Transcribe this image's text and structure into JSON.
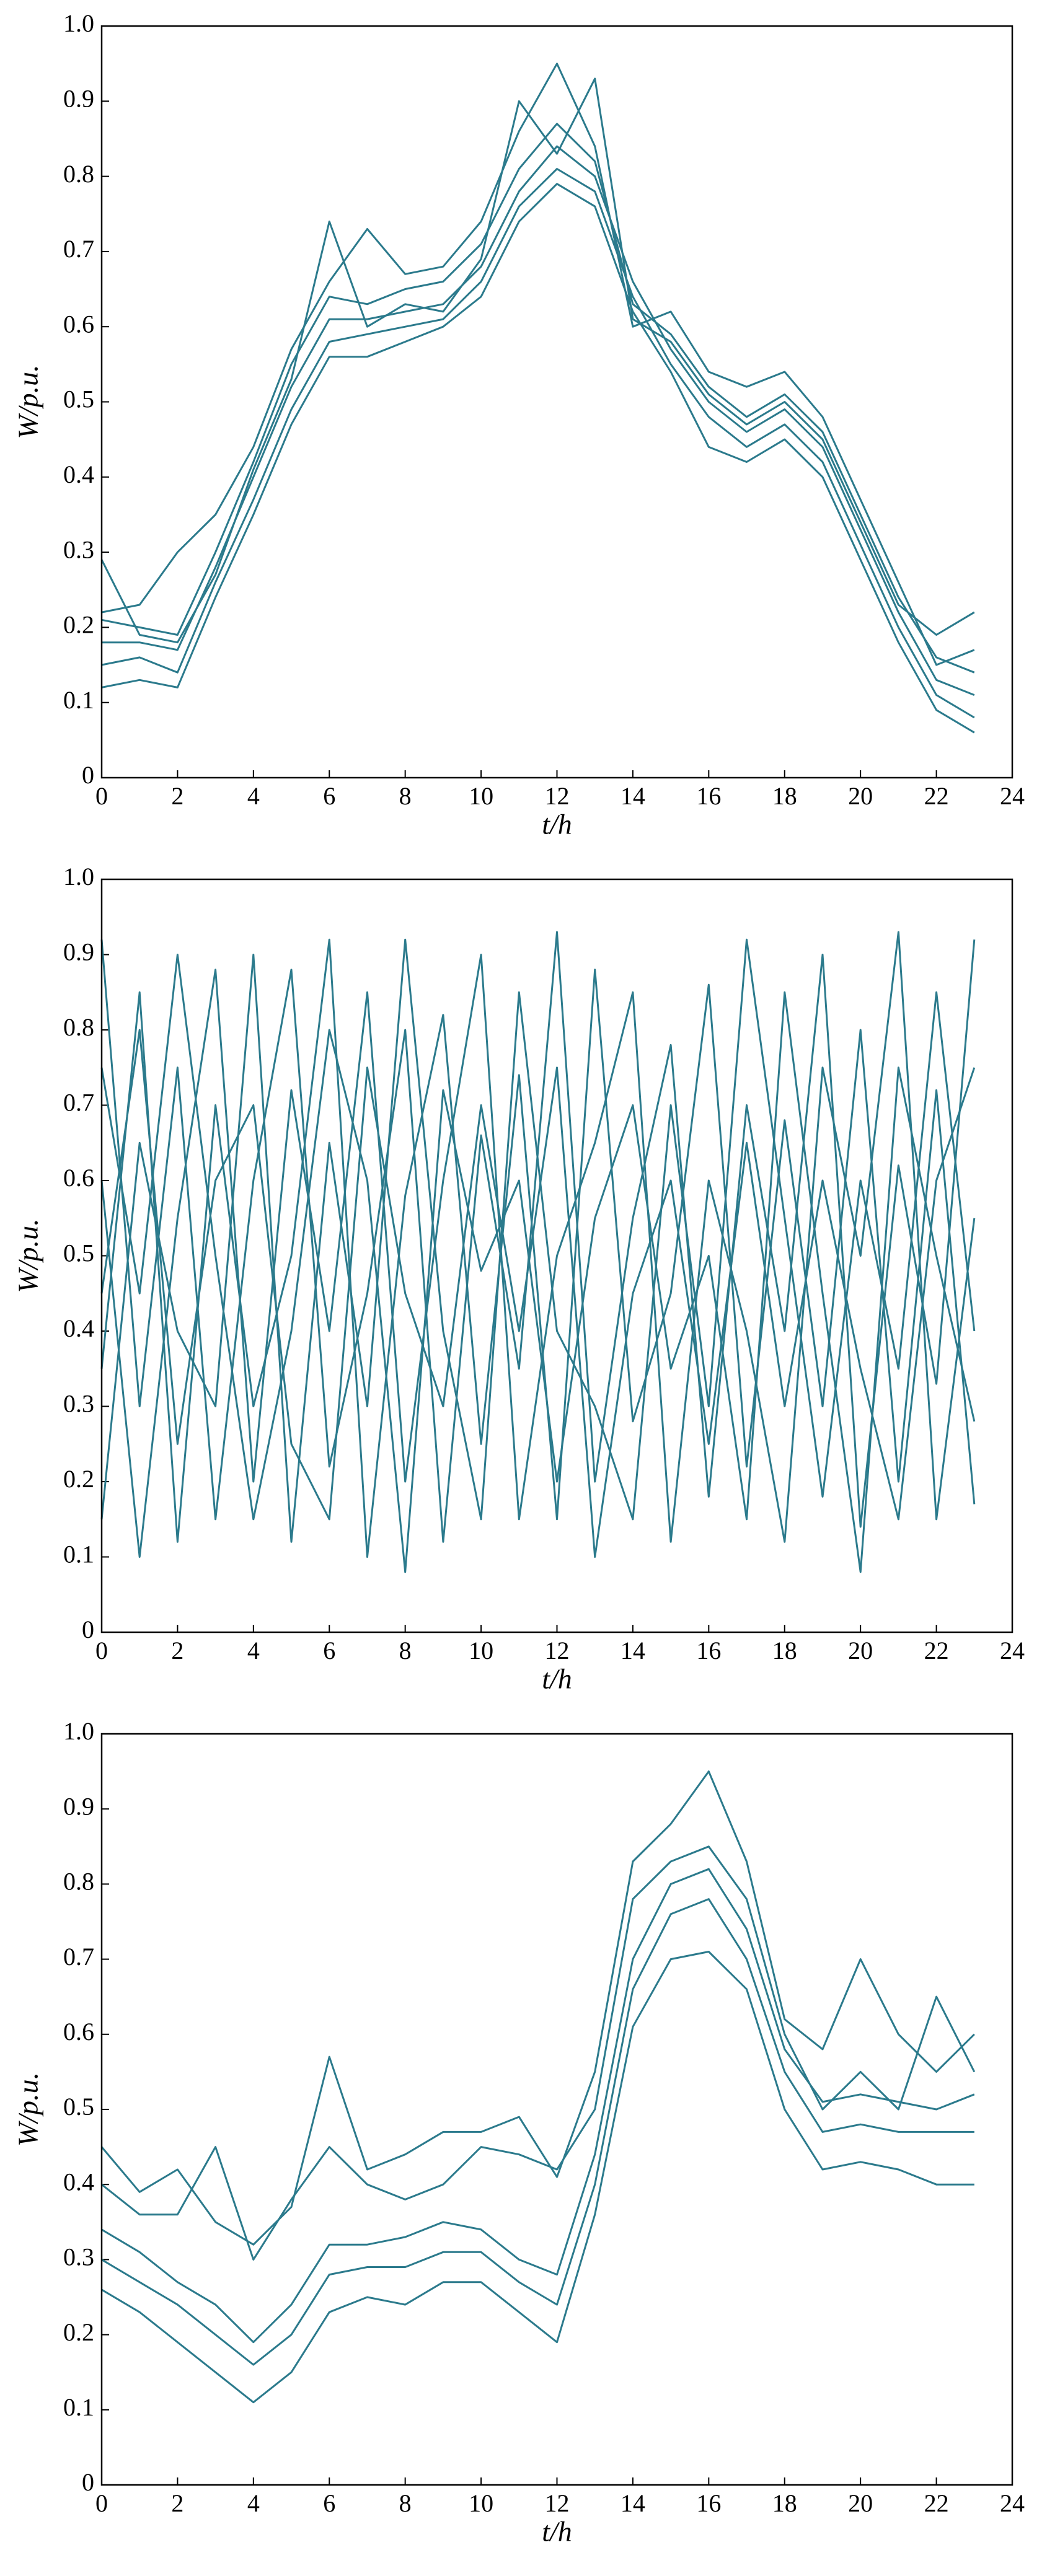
{
  "chart_data": [
    {
      "type": "line",
      "x_label": "t/h",
      "y_label": "W/p.u.",
      "x": [
        0,
        1,
        2,
        3,
        4,
        5,
        6,
        7,
        8,
        9,
        10,
        11,
        12,
        13,
        14,
        15,
        16,
        17,
        18,
        19,
        20,
        21,
        22,
        23
      ],
      "xlim": [
        0,
        24
      ],
      "xticks": [
        0,
        2,
        4,
        6,
        8,
        10,
        12,
        14,
        16,
        18,
        20,
        22,
        24
      ],
      "ylim": [
        0,
        1
      ],
      "yticks": [
        0,
        0.1,
        0.2,
        0.3,
        0.4,
        0.5,
        0.6,
        0.7,
        0.8,
        0.9,
        {
          "value": 1,
          "label": "1.0"
        }
      ],
      "series": [
        {
          "color": "#2b7a8c",
          "values": [
            0.18,
            0.18,
            0.17,
            0.28,
            0.4,
            0.52,
            0.61,
            0.61,
            0.62,
            0.63,
            0.68,
            0.78,
            0.84,
            0.8,
            0.66,
            0.57,
            0.5,
            0.46,
            0.49,
            0.44,
            0.33,
            0.22,
            0.13,
            0.11
          ]
        },
        {
          "color": "#2b7a8c",
          "values": [
            0.21,
            0.2,
            0.19,
            0.3,
            0.42,
            0.55,
            0.64,
            0.63,
            0.65,
            0.66,
            0.71,
            0.81,
            0.87,
            0.82,
            0.63,
            0.59,
            0.52,
            0.48,
            0.51,
            0.46,
            0.35,
            0.24,
            0.16,
            0.14
          ]
        },
        {
          "color": "#2b7a8c",
          "values": [
            0.15,
            0.16,
            0.14,
            0.26,
            0.37,
            0.49,
            0.58,
            0.59,
            0.6,
            0.61,
            0.66,
            0.76,
            0.81,
            0.78,
            0.64,
            0.55,
            0.48,
            0.44,
            0.47,
            0.42,
            0.31,
            0.2,
            0.11,
            0.08
          ]
        },
        {
          "color": "#2b7a8c",
          "values": [
            0.29,
            0.19,
            0.18,
            0.27,
            0.41,
            0.53,
            0.74,
            0.6,
            0.63,
            0.62,
            0.69,
            0.9,
            0.83,
            0.93,
            0.61,
            0.58,
            0.51,
            0.47,
            0.5,
            0.45,
            0.34,
            0.23,
            0.19,
            0.22
          ]
        },
        {
          "color": "#2b7a8c",
          "values": [
            0.12,
            0.13,
            0.12,
            0.24,
            0.35,
            0.47,
            0.56,
            0.56,
            0.58,
            0.6,
            0.64,
            0.74,
            0.79,
            0.76,
            0.62,
            0.54,
            0.44,
            0.42,
            0.45,
            0.4,
            0.29,
            0.18,
            0.09,
            0.06
          ]
        },
        {
          "color": "#2b7a8c",
          "values": [
            0.22,
            0.23,
            0.3,
            0.35,
            0.44,
            0.57,
            0.66,
            0.73,
            0.67,
            0.68,
            0.74,
            0.86,
            0.95,
            0.84,
            0.6,
            0.62,
            0.54,
            0.52,
            0.54,
            0.48,
            0.37,
            0.26,
            0.15,
            0.17
          ]
        }
      ]
    },
    {
      "type": "line",
      "x_label": "t/h",
      "y_label": "W/p.u.",
      "x": [
        0,
        1,
        2,
        3,
        4,
        5,
        6,
        7,
        8,
        9,
        10,
        11,
        12,
        13,
        14,
        15,
        16,
        17,
        18,
        19,
        20,
        21,
        22,
        23
      ],
      "xlim": [
        0,
        24
      ],
      "xticks": [
        0,
        2,
        4,
        6,
        8,
        10,
        12,
        14,
        16,
        18,
        20,
        22,
        24
      ],
      "ylim": [
        0,
        1
      ],
      "yticks": [
        0,
        0.1,
        0.2,
        0.3,
        0.4,
        0.5,
        0.6,
        0.7,
        0.8,
        0.9,
        {
          "value": 1,
          "label": "1.0"
        }
      ],
      "series": [
        {
          "color": "#2b7a8c",
          "values": [
            0.92,
            0.3,
            0.75,
            0.15,
            0.6,
            0.88,
            0.22,
            0.45,
            0.8,
            0.12,
            0.66,
            0.35,
            0.93,
            0.2,
            0.55,
            0.78,
            0.18,
            0.7,
            0.4,
            0.9,
            0.14,
            0.62,
            0.33,
            0.92
          ]
        },
        {
          "color": "#2b7a8c",
          "values": [
            0.35,
            0.85,
            0.12,
            0.7,
            0.3,
            0.5,
            0.92,
            0.1,
            0.58,
            0.82,
            0.25,
            0.74,
            0.15,
            0.88,
            0.28,
            0.45,
            0.86,
            0.22,
            0.68,
            0.3,
            0.8,
            0.2,
            0.72,
            0.17
          ]
        },
        {
          "color": "#2b7a8c",
          "values": [
            0.6,
            0.1,
            0.55,
            0.88,
            0.2,
            0.72,
            0.4,
            0.85,
            0.2,
            0.6,
            0.9,
            0.15,
            0.5,
            0.65,
            0.85,
            0.12,
            0.6,
            0.4,
            0.12,
            0.75,
            0.5,
            0.93,
            0.15,
            0.55
          ]
        },
        {
          "color": "#2b7a8c",
          "values": [
            0.15,
            0.65,
            0.4,
            0.3,
            0.9,
            0.12,
            0.65,
            0.3,
            0.92,
            0.4,
            0.15,
            0.85,
            0.4,
            0.3,
            0.15,
            0.7,
            0.3,
            0.92,
            0.55,
            0.18,
            0.6,
            0.35,
            0.85,
            0.4
          ]
        },
        {
          "color": "#2b7a8c",
          "values": [
            0.75,
            0.45,
            0.9,
            0.5,
            0.15,
            0.4,
            0.8,
            0.6,
            0.08,
            0.72,
            0.48,
            0.6,
            0.2,
            0.55,
            0.7,
            0.35,
            0.5,
            0.15,
            0.85,
            0.45,
            0.08,
            0.75,
            0.5,
            0.28
          ]
        },
        {
          "color": "#2b7a8c",
          "values": [
            0.45,
            0.8,
            0.25,
            0.6,
            0.7,
            0.25,
            0.15,
            0.75,
            0.45,
            0.3,
            0.7,
            0.4,
            0.75,
            0.1,
            0.45,
            0.6,
            0.25,
            0.65,
            0.3,
            0.6,
            0.35,
            0.15,
            0.6,
            0.75
          ]
        }
      ]
    },
    {
      "type": "line",
      "x_label": "t/h",
      "y_label": "W/p.u.",
      "x": [
        0,
        1,
        2,
        3,
        4,
        5,
        6,
        7,
        8,
        9,
        10,
        11,
        12,
        13,
        14,
        15,
        16,
        17,
        18,
        19,
        20,
        21,
        22,
        23
      ],
      "xlim": [
        0,
        24
      ],
      "xticks": [
        0,
        2,
        4,
        6,
        8,
        10,
        12,
        14,
        16,
        18,
        20,
        22,
        24
      ],
      "ylim": [
        0,
        1
      ],
      "yticks": [
        0,
        0.1,
        0.2,
        0.3,
        0.4,
        0.5,
        0.6,
        0.7,
        0.8,
        0.9,
        {
          "value": 1,
          "label": "1.0"
        }
      ],
      "series": [
        {
          "color": "#2b7a8c",
          "values": [
            0.3,
            0.27,
            0.24,
            0.2,
            0.16,
            0.2,
            0.28,
            0.29,
            0.29,
            0.31,
            0.31,
            0.27,
            0.24,
            0.4,
            0.66,
            0.76,
            0.78,
            0.7,
            0.55,
            0.47,
            0.48,
            0.47,
            0.47,
            0.47
          ]
        },
        {
          "color": "#2b7a8c",
          "values": [
            0.34,
            0.31,
            0.27,
            0.24,
            0.19,
            0.24,
            0.32,
            0.32,
            0.33,
            0.35,
            0.34,
            0.3,
            0.28,
            0.44,
            0.7,
            0.8,
            0.82,
            0.74,
            0.58,
            0.51,
            0.52,
            0.51,
            0.5,
            0.52
          ]
        },
        {
          "color": "#2b7a8c",
          "values": [
            0.26,
            0.23,
            0.19,
            0.15,
            0.11,
            0.15,
            0.23,
            0.25,
            0.24,
            0.27,
            0.27,
            0.23,
            0.19,
            0.36,
            0.61,
            0.7,
            0.71,
            0.66,
            0.5,
            0.42,
            0.43,
            0.42,
            0.4,
            0.4
          ]
        },
        {
          "color": "#2b7a8c",
          "values": [
            0.45,
            0.39,
            0.42,
            0.35,
            0.32,
            0.37,
            0.57,
            0.42,
            0.44,
            0.47,
            0.47,
            0.49,
            0.41,
            0.55,
            0.83,
            0.88,
            0.95,
            0.83,
            0.62,
            0.58,
            0.7,
            0.6,
            0.55,
            0.6
          ]
        },
        {
          "color": "#2b7a8c",
          "values": [
            0.4,
            0.36,
            0.36,
            0.45,
            0.3,
            0.38,
            0.45,
            0.4,
            0.38,
            0.4,
            0.45,
            0.44,
            0.42,
            0.5,
            0.78,
            0.83,
            0.85,
            0.78,
            0.6,
            0.5,
            0.55,
            0.5,
            0.65,
            0.55
          ]
        }
      ]
    }
  ]
}
